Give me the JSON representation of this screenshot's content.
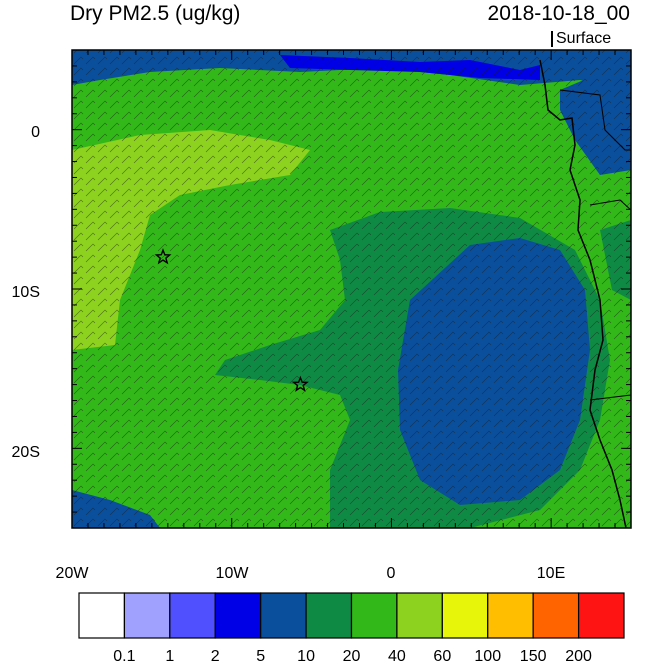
{
  "title": "Dry PM2.5 (ug/kg)",
  "datetime": "2018-10-18_00",
  "level": "Surface",
  "x_ticks": [
    "20W",
    "10W",
    "0",
    "10E"
  ],
  "y_ticks": [
    "0",
    "10S",
    "20S"
  ],
  "colorbar": {
    "colors": [
      "#ffffff",
      "#a0a0ff",
      "#5050ff",
      "#0000e6",
      "#0a4f9c",
      "#0f8a44",
      "#32b818",
      "#8cd21e",
      "#e6f50a",
      "#ffbe00",
      "#ff6400",
      "#ff1414"
    ],
    "labels": [
      "0.1",
      "1",
      "2",
      "5",
      "10",
      "20",
      "40",
      "60",
      "100",
      "150",
      "200"
    ]
  },
  "markers": [
    {
      "name": "star-marker-1",
      "lon": -14.3,
      "lat": -8.0
    },
    {
      "name": "star-marker-2",
      "lon": -5.7,
      "lat": -16.0
    }
  ]
}
